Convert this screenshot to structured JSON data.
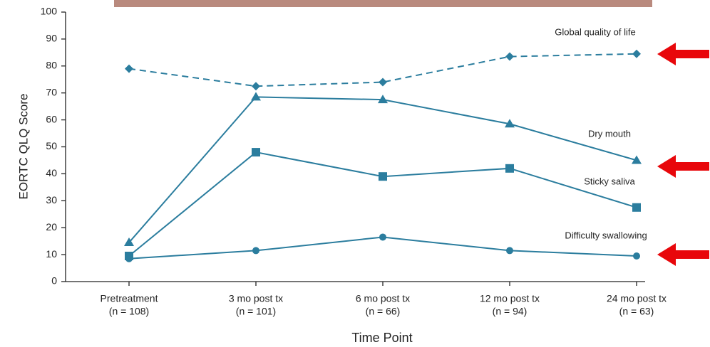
{
  "chart_data": {
    "type": "line",
    "ylabel": "EORTC QLQ Score",
    "xlabel": "Time Point",
    "categories": [
      [
        "Pretreatment",
        "(n = 108)"
      ],
      [
        "3 mo post tx",
        "(n = 101)"
      ],
      [
        "6 mo post tx",
        "(n = 66)"
      ],
      [
        "12 mo post tx",
        "(n = 94)"
      ],
      [
        "24 mo post tx",
        "(n = 63)"
      ]
    ],
    "ylim": [
      0,
      100
    ],
    "yticks": [
      0,
      10,
      20,
      30,
      40,
      50,
      60,
      70,
      80,
      90,
      100
    ],
    "grid": false,
    "series": [
      {
        "name": "Global quality of life",
        "color": "#2b7d9e",
        "marker": "diamond",
        "linestyle": "dashed",
        "values": [
          79,
          72.5,
          74,
          83.5,
          84.5
        ]
      },
      {
        "name": "Dry mouth",
        "color": "#2b7d9e",
        "marker": "triangle",
        "linestyle": "solid",
        "values": [
          14.5,
          68.5,
          67.5,
          58.5,
          45
        ]
      },
      {
        "name": "Sticky saliva",
        "color": "#2b7d9e",
        "marker": "square",
        "linestyle": "solid",
        "values": [
          9.5,
          48,
          39,
          42,
          27.5
        ]
      },
      {
        "name": "Difficulty swallowing",
        "color": "#2b7d9e",
        "marker": "circle",
        "linestyle": "solid",
        "values": [
          8.5,
          11.5,
          16.5,
          11.5,
          9.5
        ]
      }
    ]
  }
}
